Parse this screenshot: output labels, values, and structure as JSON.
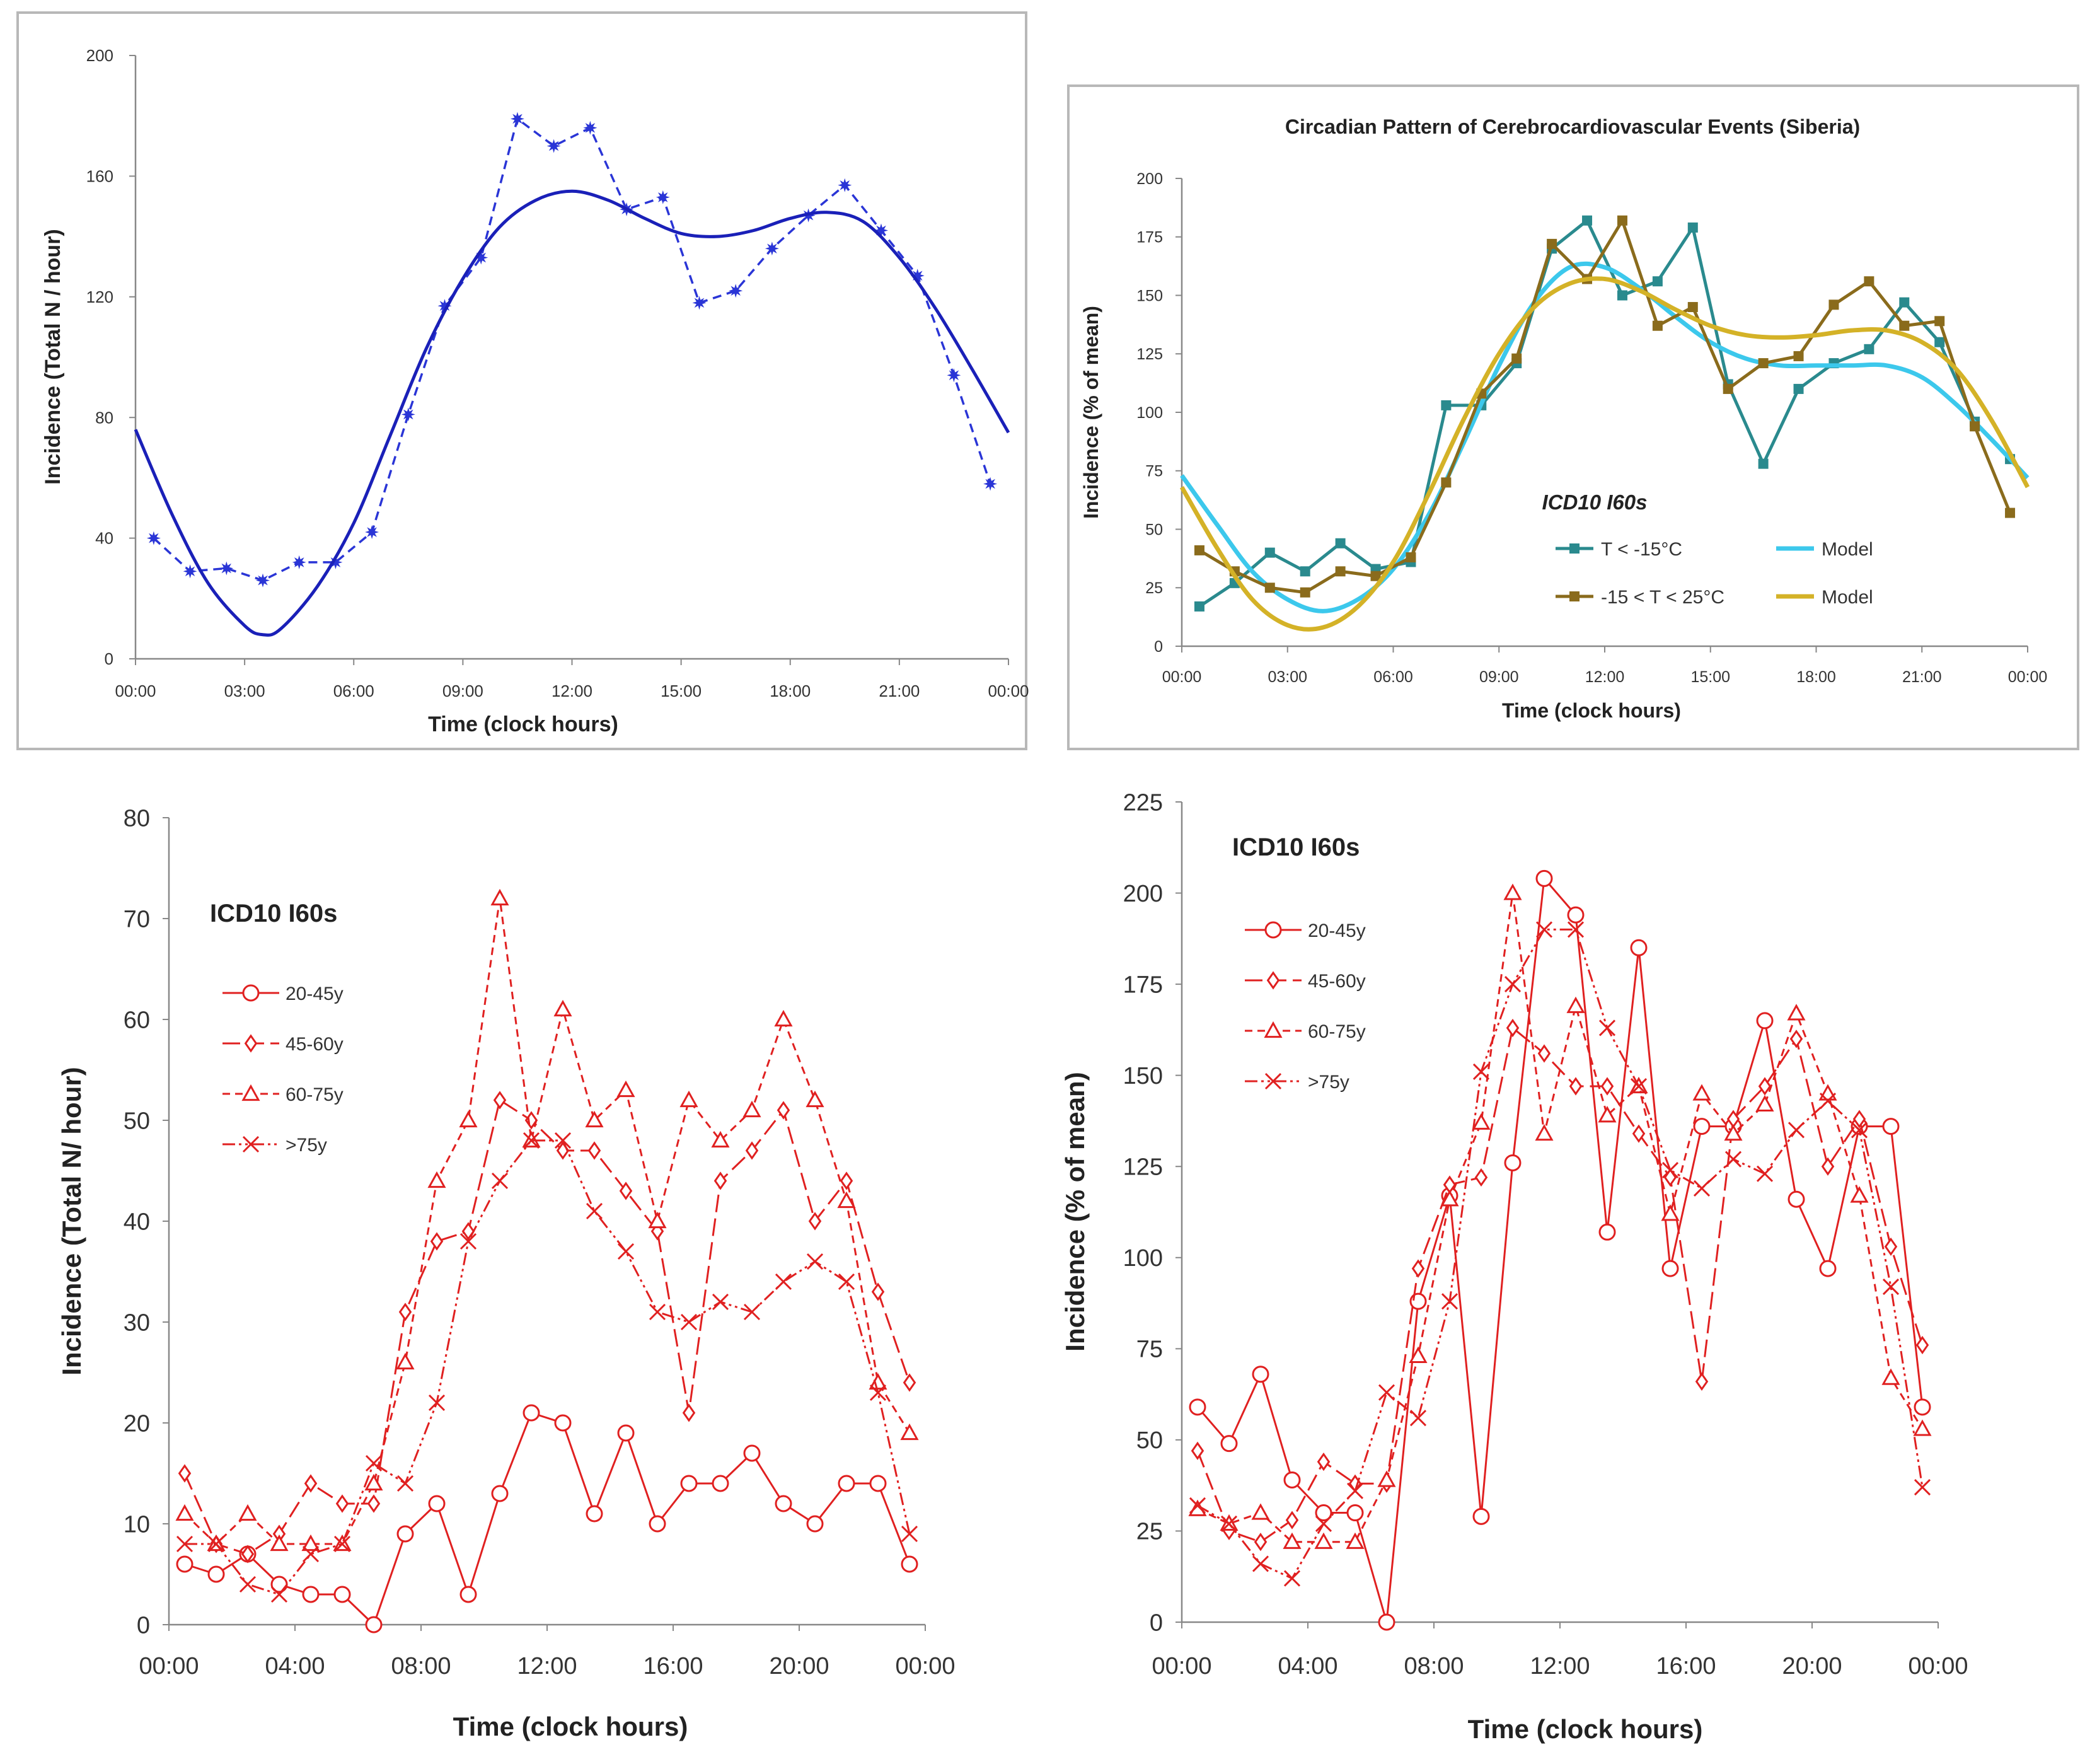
{
  "chart_data": [
    {
      "type": "line",
      "title": "",
      "xlabel": "Time (clock hours)",
      "ylabel": "Incidence (Total N / hour)",
      "xticks": [
        "00:00",
        "03:00",
        "06:00",
        "09:00",
        "12:00",
        "15:00",
        "18:00",
        "21:00",
        "00:00"
      ],
      "xlim": [
        0,
        24
      ],
      "ylim": [
        0,
        200
      ],
      "yticks": [
        0,
        40,
        80,
        120,
        160,
        200
      ],
      "grid": false,
      "colors": {
        "series": "#2a35d6"
      },
      "series": [
        {
          "style": "dashed-markers",
          "color": "#2a35d6",
          "x": [
            0.5,
            1.5,
            2.5,
            3.5,
            4.5,
            5.5,
            6.5,
            7.5,
            8.5,
            9.5,
            10.5,
            11.5,
            12.5,
            13.5,
            14.5,
            15.5,
            16.5,
            17.5,
            18.5,
            19.5,
            20.5,
            21.5,
            22.5,
            23.5
          ],
          "values": [
            40,
            29,
            30,
            26,
            32,
            32,
            42,
            81,
            117,
            133,
            179,
            170,
            176,
            149,
            153,
            118,
            122,
            136,
            147,
            157,
            142,
            127,
            94,
            58
          ]
        },
        {
          "style": "solid-fit",
          "color": "#1a20b8",
          "x": [
            0,
            1,
            2,
            3,
            3.5,
            4,
            5,
            6,
            7,
            8,
            9,
            10,
            11,
            12,
            13,
            14,
            15,
            16,
            17,
            18,
            19,
            20,
            21,
            22,
            23,
            24
          ],
          "values": [
            76,
            48,
            25,
            11,
            8,
            10,
            24,
            45,
            74,
            103,
            126,
            143,
            152,
            155,
            152,
            146,
            141,
            140,
            142,
            146,
            148,
            145,
            133,
            116,
            96,
            75
          ]
        }
      ]
    },
    {
      "type": "line",
      "title": "Circadian Pattern of Cerebrocardiovascular Events (Siberia)",
      "xlabel": "Time (clock hours)",
      "ylabel": "Incidence (% of mean)",
      "xticks": [
        "00:00",
        "03:00",
        "06:00",
        "09:00",
        "12:00",
        "15:00",
        "18:00",
        "21:00",
        "00:00"
      ],
      "xlim": [
        0,
        24
      ],
      "ylim": [
        0,
        200
      ],
      "yticks": [
        0,
        25,
        50,
        75,
        100,
        125,
        150,
        175,
        200
      ],
      "grid": false,
      "legend_title": "ICD10 I60s",
      "legend_position": "center",
      "series": [
        {
          "name": "T < -15°C",
          "color": "#2a8a8e",
          "x": [
            0.5,
            1.5,
            2.5,
            3.5,
            4.5,
            5.5,
            6.5,
            7.5,
            8.5,
            9.5,
            10.5,
            11.5,
            12.5,
            13.5,
            14.5,
            15.5,
            16.5,
            17.5,
            18.5,
            19.5,
            20.5,
            21.5,
            22.5,
            23.5
          ],
          "values": [
            17,
            27,
            40,
            32,
            44,
            33,
            36,
            103,
            103,
            121,
            170,
            182,
            150,
            156,
            179,
            112,
            78,
            110,
            121,
            127,
            147,
            130,
            96,
            80
          ]
        },
        {
          "name": "Model",
          "color": "#3cc8ec",
          "x": [
            0,
            1,
            2,
            3,
            4,
            5,
            6,
            7,
            8,
            9,
            10,
            11,
            12,
            13,
            14,
            15,
            16,
            17,
            18,
            19,
            20,
            21,
            22,
            23,
            24
          ],
          "values": [
            73,
            52,
            32,
            20,
            15,
            20,
            33,
            56,
            87,
            120,
            147,
            162,
            162,
            153,
            141,
            130,
            123,
            120,
            120,
            120,
            120,
            115,
            103,
            88,
            72
          ]
        },
        {
          "name": "-15 < T < 25°C",
          "color": "#8a6b1c",
          "x": [
            0.5,
            1.5,
            2.5,
            3.5,
            4.5,
            5.5,
            6.5,
            7.5,
            8.5,
            9.5,
            10.5,
            11.5,
            12.5,
            13.5,
            14.5,
            15.5,
            16.5,
            17.5,
            18.5,
            19.5,
            20.5,
            21.5,
            22.5,
            23.5
          ],
          "values": [
            41,
            32,
            25,
            23,
            32,
            30,
            38,
            70,
            108,
            123,
            172,
            157,
            182,
            137,
            145,
            110,
            121,
            124,
            146,
            156,
            137,
            139,
            94,
            57
          ]
        },
        {
          "name": "Model",
          "color": "#d4b227",
          "x": [
            0,
            1,
            2,
            3,
            4,
            5,
            6,
            7,
            8,
            9,
            10,
            11,
            12,
            13,
            14,
            15,
            16,
            17,
            18,
            19,
            20,
            21,
            22,
            23,
            24
          ],
          "values": [
            68,
            42,
            20,
            9,
            8,
            17,
            36,
            65,
            97,
            125,
            145,
            155,
            157,
            152,
            144,
            137,
            133,
            132,
            133,
            135,
            135,
            130,
            118,
            96,
            68
          ]
        }
      ]
    },
    {
      "type": "line",
      "title": "",
      "xlabel": "Time (clock hours)",
      "ylabel": "Incidence (Total N/ hour)",
      "xticks": [
        "00:00",
        "04:00",
        "08:00",
        "12:00",
        "16:00",
        "20:00",
        "00:00"
      ],
      "xlim": [
        0,
        24
      ],
      "ylim": [
        0,
        80
      ],
      "yticks": [
        0,
        10,
        20,
        30,
        40,
        50,
        60,
        70,
        80
      ],
      "grid": false,
      "legend_title": "ICD10 I60s",
      "legend_position": "left",
      "series": [
        {
          "name": "20-45y",
          "color": "#e02020",
          "dash": "",
          "marker": "circle",
          "x": [
            0.5,
            1.5,
            2.5,
            3.5,
            4.5,
            5.5,
            6.5,
            7.5,
            8.5,
            9.5,
            10.5,
            11.5,
            12.5,
            13.5,
            14.5,
            15.5,
            16.5,
            17.5,
            18.5,
            19.5,
            20.5,
            21.5,
            22.5,
            23.5
          ],
          "values": [
            6,
            5,
            7,
            4,
            3,
            3,
            0,
            9,
            12,
            3,
            13,
            21,
            20,
            11,
            19,
            10,
            14,
            14,
            17,
            12,
            10,
            14,
            14,
            6
          ]
        },
        {
          "name": "45-60y",
          "color": "#e02020",
          "dash": "28,10",
          "marker": "diamond",
          "x": [
            0.5,
            1.5,
            2.5,
            3.5,
            4.5,
            5.5,
            6.5,
            7.5,
            8.5,
            9.5,
            10.5,
            11.5,
            12.5,
            13.5,
            14.5,
            15.5,
            16.5,
            17.5,
            18.5,
            19.5,
            20.5,
            21.5,
            22.5,
            23.5
          ],
          "values": [
            15,
            8,
            7,
            9,
            14,
            12,
            12,
            31,
            38,
            39,
            52,
            50,
            47,
            47,
            43,
            39,
            21,
            44,
            47,
            51,
            40,
            44,
            33,
            24
          ]
        },
        {
          "name": "60-75y",
          "color": "#e02020",
          "dash": "12,8",
          "marker": "triangle",
          "x": [
            0.5,
            1.5,
            2.5,
            3.5,
            4.5,
            5.5,
            6.5,
            7.5,
            8.5,
            9.5,
            10.5,
            11.5,
            12.5,
            13.5,
            14.5,
            15.5,
            16.5,
            17.5,
            18.5,
            19.5,
            20.5,
            21.5,
            22.5,
            23.5
          ],
          "values": [
            11,
            8,
            11,
            8,
            8,
            8,
            14,
            26,
            44,
            50,
            72,
            48,
            61,
            50,
            53,
            40,
            52,
            48,
            51,
            60,
            52,
            42,
            24,
            19
          ]
        },
        {
          "name": ">75y",
          "color": "#e02020",
          "dash": "20,6,4,6,4,6",
          "marker": "x",
          "x": [
            0.5,
            1.5,
            2.5,
            3.5,
            4.5,
            5.5,
            6.5,
            7.5,
            8.5,
            9.5,
            10.5,
            11.5,
            12.5,
            13.5,
            14.5,
            15.5,
            16.5,
            17.5,
            18.5,
            19.5,
            20.5,
            21.5,
            22.5,
            23.5
          ],
          "values": [
            8,
            8,
            4,
            3,
            7,
            8,
            16,
            14,
            22,
            38,
            44,
            48,
            48,
            41,
            37,
            31,
            30,
            32,
            31,
            34,
            36,
            34,
            23,
            9
          ]
        }
      ]
    },
    {
      "type": "line",
      "title": "",
      "xlabel": "Time (clock hours)",
      "ylabel": "Incidence (% of mean)",
      "xticks": [
        "00:00",
        "04:00",
        "08:00",
        "12:00",
        "16:00",
        "20:00",
        "00:00"
      ],
      "xlim": [
        0,
        24
      ],
      "ylim": [
        0,
        225
      ],
      "yticks": [
        0,
        25,
        50,
        75,
        100,
        125,
        150,
        175,
        200,
        225
      ],
      "grid": false,
      "legend_title": "ICD10 I60s",
      "legend_position": "top-left",
      "series": [
        {
          "name": "20-45y",
          "color": "#e02020",
          "dash": "",
          "marker": "circle",
          "x": [
            0.5,
            1.5,
            2.5,
            3.5,
            4.5,
            5.5,
            6.5,
            7.5,
            8.5,
            9.5,
            10.5,
            11.5,
            12.5,
            13.5,
            14.5,
            15.5,
            16.5,
            17.5,
            18.5,
            19.5,
            20.5,
            21.5,
            22.5,
            23.5
          ],
          "values": [
            59,
            49,
            68,
            39,
            30,
            30,
            0,
            88,
            117,
            29,
            126,
            204,
            194,
            107,
            185,
            97,
            136,
            136,
            165,
            116,
            97,
            136,
            136,
            59
          ]
        },
        {
          "name": "45-60y",
          "color": "#e02020",
          "dash": "28,10",
          "marker": "diamond",
          "x": [
            0.5,
            1.5,
            2.5,
            3.5,
            4.5,
            5.5,
            6.5,
            7.5,
            8.5,
            9.5,
            10.5,
            11.5,
            12.5,
            13.5,
            14.5,
            15.5,
            16.5,
            17.5,
            18.5,
            19.5,
            20.5,
            21.5,
            22.5,
            23.5
          ],
          "values": [
            47,
            25,
            22,
            28,
            44,
            38,
            38,
            97,
            120,
            122,
            163,
            156,
            147,
            147,
            134,
            122,
            66,
            138,
            147,
            160,
            125,
            138,
            103,
            76
          ]
        },
        {
          "name": "60-75y",
          "color": "#e02020",
          "dash": "12,8",
          "marker": "triangle",
          "x": [
            0.5,
            1.5,
            2.5,
            3.5,
            4.5,
            5.5,
            6.5,
            7.5,
            8.5,
            9.5,
            10.5,
            11.5,
            12.5,
            13.5,
            14.5,
            15.5,
            16.5,
            17.5,
            18.5,
            19.5,
            20.5,
            21.5,
            22.5,
            23.5
          ],
          "values": [
            31,
            27,
            30,
            22,
            22,
            22,
            39,
            73,
            116,
            137,
            200,
            134,
            169,
            139,
            147,
            112,
            145,
            134,
            142,
            167,
            145,
            117,
            67,
            53
          ]
        },
        {
          "name": ">75y",
          "color": "#e02020",
          "dash": "20,6,4,6,4,6",
          "marker": "x",
          "x": [
            0.5,
            1.5,
            2.5,
            3.5,
            4.5,
            5.5,
            6.5,
            7.5,
            8.5,
            9.5,
            10.5,
            11.5,
            12.5,
            13.5,
            14.5,
            15.5,
            16.5,
            17.5,
            18.5,
            19.5,
            20.5,
            21.5,
            22.5,
            23.5
          ],
          "values": [
            32,
            27,
            16,
            12,
            27,
            36,
            63,
            56,
            88,
            151,
            175,
            190,
            190,
            163,
            147,
            124,
            119,
            127,
            123,
            135,
            143,
            135,
            92,
            37
          ]
        }
      ]
    }
  ]
}
